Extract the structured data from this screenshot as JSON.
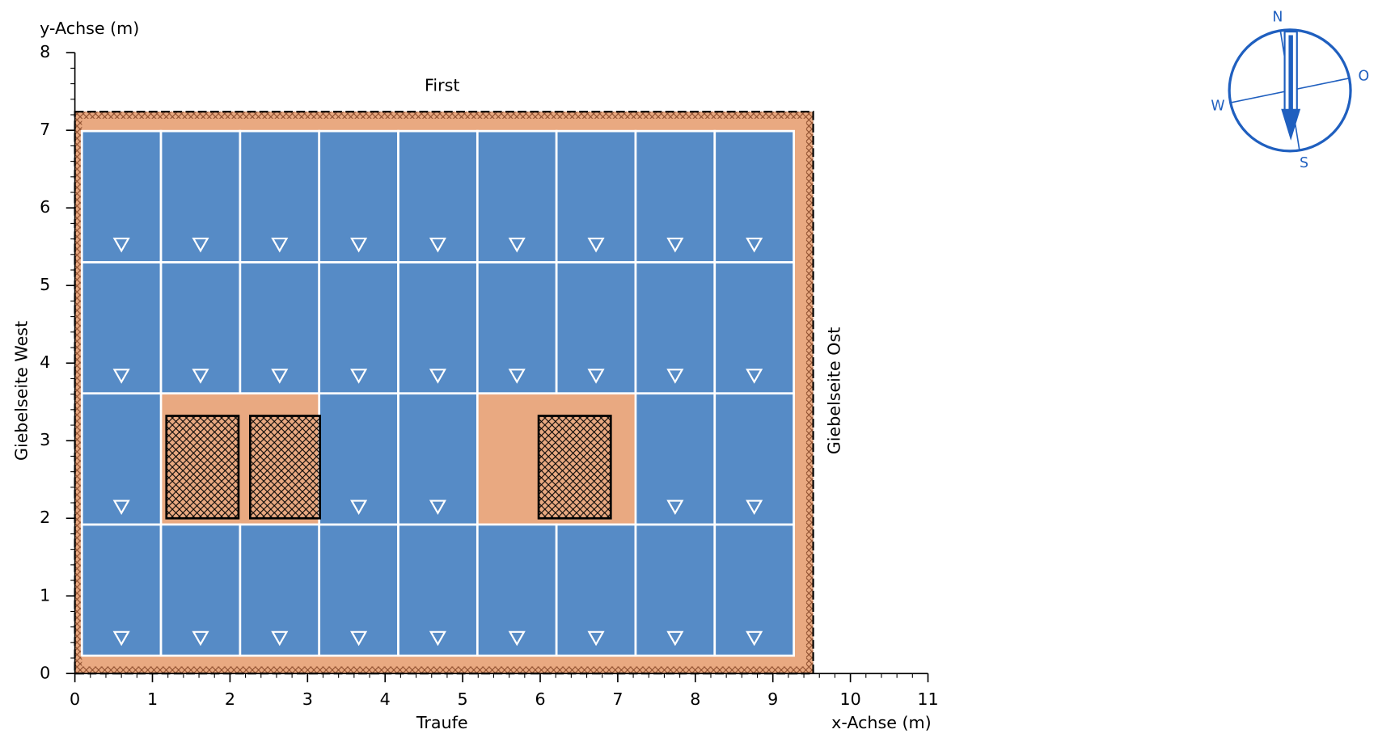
{
  "chart_data": {
    "type": "roof",
    "xlabel": "x-Achse (m)",
    "ylabel": "y-Achse (m)",
    "top_label": "First",
    "bottom_label": "Traufe",
    "left_label": "Giebelseite West",
    "right_label": "Giebelseite Ost",
    "xlim": [
      0,
      11
    ],
    "ylim": [
      0,
      8
    ],
    "xticks": [
      0,
      1,
      2,
      3,
      4,
      5,
      6,
      7,
      8,
      9,
      10,
      11
    ],
    "yticks": [
      0,
      1,
      2,
      3,
      4,
      5,
      6,
      7,
      8
    ],
    "minor_ticks": 0.2,
    "roof": {
      "x": [
        0,
        9.52
      ],
      "y": [
        0,
        7.24
      ],
      "color": "#e9a981"
    },
    "panel_color": "#568bc6",
    "panel_size": [
      1.02,
      1.69
    ],
    "panels": [
      {
        "x": 0.09,
        "y": 0.23
      },
      {
        "x": 1.11,
        "y": 0.23
      },
      {
        "x": 2.13,
        "y": 0.23
      },
      {
        "x": 3.15,
        "y": 0.23
      },
      {
        "x": 4.17,
        "y": 0.23
      },
      {
        "x": 5.19,
        "y": 0.23
      },
      {
        "x": 6.21,
        "y": 0.23
      },
      {
        "x": 7.23,
        "y": 0.23
      },
      {
        "x": 8.25,
        "y": 0.23
      },
      {
        "x": 0.09,
        "y": 1.92
      },
      {
        "x": 3.15,
        "y": 1.92
      },
      {
        "x": 4.17,
        "y": 1.92
      },
      {
        "x": 7.23,
        "y": 1.92
      },
      {
        "x": 8.25,
        "y": 1.92
      },
      {
        "x": 0.09,
        "y": 3.61
      },
      {
        "x": 1.11,
        "y": 3.61
      },
      {
        "x": 2.13,
        "y": 3.61
      },
      {
        "x": 3.15,
        "y": 3.61
      },
      {
        "x": 4.17,
        "y": 3.61
      },
      {
        "x": 5.19,
        "y": 3.61
      },
      {
        "x": 6.21,
        "y": 3.61
      },
      {
        "x": 7.23,
        "y": 3.61
      },
      {
        "x": 8.25,
        "y": 3.61
      },
      {
        "x": 0.09,
        "y": 5.3
      },
      {
        "x": 1.11,
        "y": 5.3
      },
      {
        "x": 2.13,
        "y": 5.3
      },
      {
        "x": 3.15,
        "y": 5.3
      },
      {
        "x": 4.17,
        "y": 5.3
      },
      {
        "x": 5.19,
        "y": 5.3
      },
      {
        "x": 6.21,
        "y": 5.3
      },
      {
        "x": 7.23,
        "y": 5.3
      },
      {
        "x": 8.25,
        "y": 5.3
      }
    ],
    "obstacles": [
      {
        "x": 1.18,
        "y": 2.0,
        "w": 0.93,
        "h": 1.32
      },
      {
        "x": 2.26,
        "y": 2.0,
        "w": 0.9,
        "h": 1.32
      },
      {
        "x": 5.98,
        "y": 2.0,
        "w": 0.93,
        "h": 1.32
      }
    ],
    "compass": {
      "N": "N",
      "O": "O",
      "S": "S",
      "W": "W"
    }
  }
}
